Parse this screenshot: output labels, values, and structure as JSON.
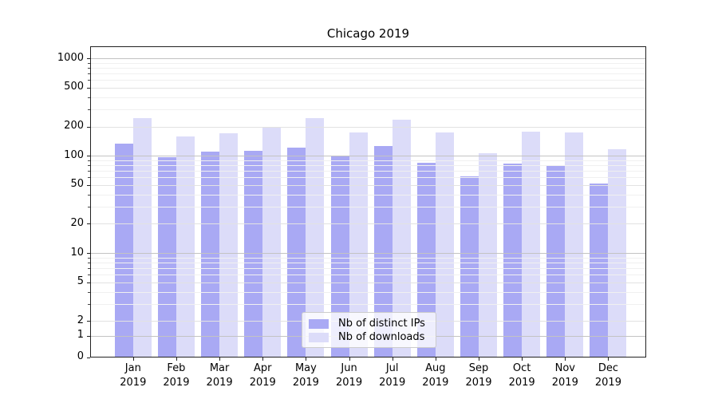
{
  "chart_data": {
    "type": "bar",
    "title": "Chicago 2019",
    "categories": [
      "Jan",
      "Feb",
      "Mar",
      "Apr",
      "May",
      "Jun",
      "Jul",
      "Aug",
      "Sep",
      "Oct",
      "Nov",
      "Dec"
    ],
    "year": "2019",
    "series": [
      {
        "name": "Nb of distinct IPs",
        "color": "#a9a9f4",
        "values": [
          132,
          97,
          110,
          112,
          122,
          100,
          126,
          85,
          61,
          83,
          79,
          52
        ]
      },
      {
        "name": "Nb of downloads",
        "color": "#dcdcf9",
        "values": [
          246,
          158,
          170,
          198,
          244,
          173,
          236,
          172,
          107,
          177,
          174,
          116
        ]
      }
    ],
    "yscale": "symlog",
    "yticks": [
      0,
      1,
      2,
      5,
      10,
      20,
      50,
      100,
      200,
      500,
      1000
    ],
    "ylim": [
      0,
      1300
    ],
    "xlabel": "",
    "ylabel": "",
    "grid": true,
    "legend_position": "lower center"
  }
}
